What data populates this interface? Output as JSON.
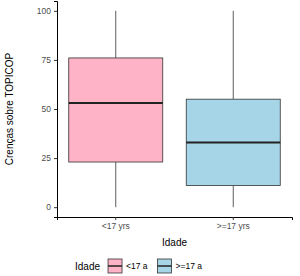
{
  "chart_data": {
    "type": "box",
    "x_label": "Idade",
    "y_label": "Crenças sobre TOPICOP",
    "categories": [
      "<17 yrs",
      ">=17 yrs"
    ],
    "min": [
      0,
      0
    ],
    "q1": [
      23,
      11
    ],
    "median": [
      53,
      33
    ],
    "q3": [
      76,
      55
    ],
    "max": [
      100,
      100
    ],
    "colors": [
      "#ffb3c6",
      "#a6d5e8"
    ],
    "ylim": [
      -5,
      105
    ],
    "yticks": [
      0,
      25,
      50,
      75,
      100
    ],
    "grid": false,
    "legend": "bottom",
    "legend_title": "Idade",
    "legend_labels": [
      "<17 a",
      ">=17 a"
    ]
  }
}
